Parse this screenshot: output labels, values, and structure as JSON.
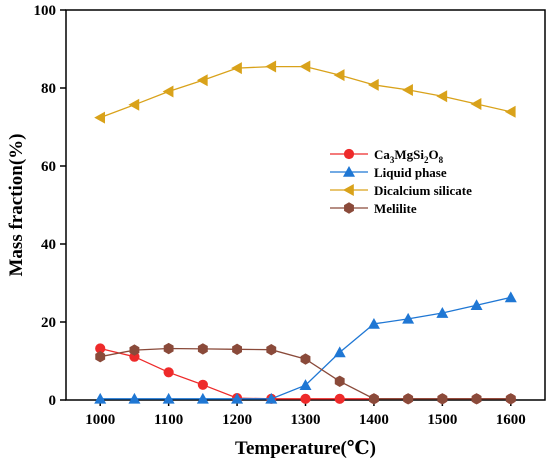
{
  "chart_data": {
    "type": "line",
    "title": "",
    "xlabel": "Temperature(℃)",
    "ylabel": "Mass fraction(%)",
    "xlim": [
      950,
      1650
    ],
    "ylim": [
      0,
      100
    ],
    "x_ticks": [
      1000,
      1100,
      1200,
      1300,
      1400,
      1500,
      1600
    ],
    "y_ticks": [
      0,
      20,
      40,
      60,
      80,
      100
    ],
    "x": [
      1000,
      1050,
      1100,
      1150,
      1200,
      1250,
      1300,
      1350,
      1400,
      1450,
      1500,
      1550,
      1600
    ],
    "legend_position": "center-right",
    "grid": false,
    "series": [
      {
        "name": "Ca3MgSi2O8",
        "color": "#ee2a2a",
        "marker": "circle",
        "values": [
          13.2,
          11.1,
          7.1,
          3.9,
          0.5,
          0.3,
          0.3,
          0.3,
          0.3,
          0.3,
          0.3,
          0.3,
          0.3
        ]
      },
      {
        "name": "Liquid phase",
        "color": "#1f77d4",
        "marker": "triangle-up",
        "values": [
          0.3,
          0.3,
          0.3,
          0.3,
          0.3,
          0.3,
          3.8,
          12.2,
          19.5,
          20.8,
          22.3,
          24.3,
          26.3
        ]
      },
      {
        "name": "Dicalcium silicate",
        "color": "#d9a21a",
        "marker": "triangle-left",
        "values": [
          72.4,
          75.7,
          79.1,
          82.0,
          85.1,
          85.5,
          85.5,
          83.3,
          80.8,
          79.5,
          77.9,
          75.9,
          73.9
        ]
      },
      {
        "name": "Melilite",
        "color": "#8a4a3a",
        "marker": "hexagon",
        "values": [
          11.1,
          12.8,
          13.2,
          13.1,
          13.0,
          12.9,
          10.5,
          4.8,
          0.3,
          0.3,
          0.3,
          0.3,
          0.3
        ]
      }
    ]
  }
}
